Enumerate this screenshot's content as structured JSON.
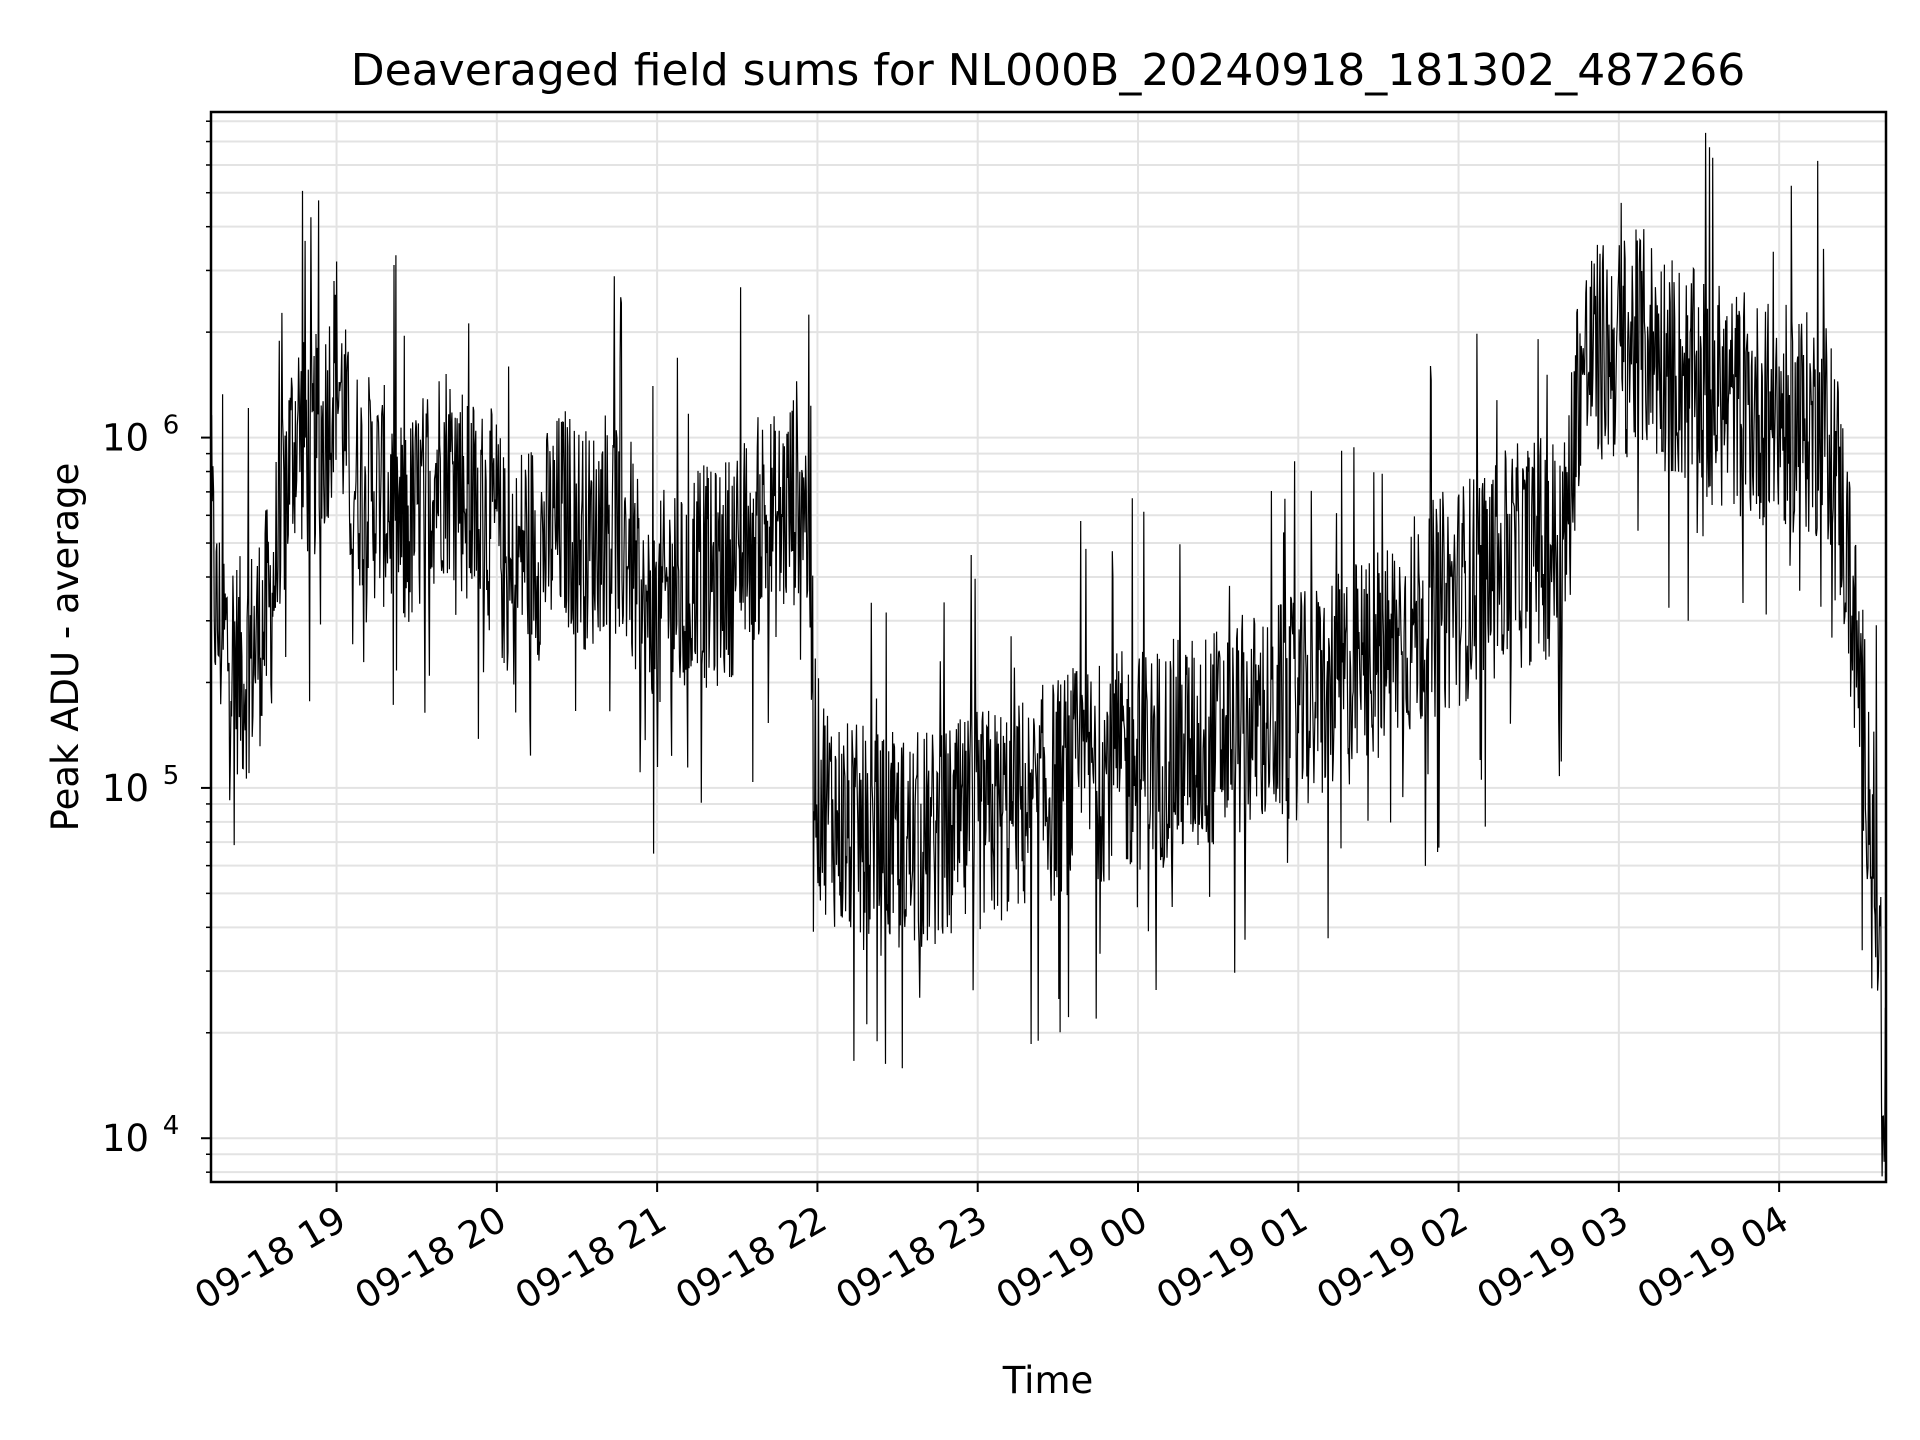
{
  "chart_data": {
    "type": "line",
    "title": "Deaveraged field sums for NL000B_20240918_181302_487266",
    "xlabel": "Time",
    "ylabel": "Peak ADU - average",
    "yscale": "log",
    "ylim": [
      7500,
      8500000
    ],
    "xlim": [
      "2024-09-18 18:13",
      "2024-09-19 04:40"
    ],
    "grid": true,
    "line_color": "#000000",
    "x_ticks": [
      {
        "value": "2024-09-18 19:00",
        "label": "09-18 19"
      },
      {
        "value": "2024-09-18 20:00",
        "label": "09-18 20"
      },
      {
        "value": "2024-09-18 21:00",
        "label": "09-18 21"
      },
      {
        "value": "2024-09-18 22:00",
        "label": "09-18 22"
      },
      {
        "value": "2024-09-18 23:00",
        "label": "09-18 23"
      },
      {
        "value": "2024-09-19 00:00",
        "label": "09-19 00"
      },
      {
        "value": "2024-09-19 01:00",
        "label": "09-19 01"
      },
      {
        "value": "2024-09-19 02:00",
        "label": "09-19 02"
      },
      {
        "value": "2024-09-19 03:00",
        "label": "09-19 03"
      },
      {
        "value": "2024-09-19 04:00",
        "label": "09-19 04"
      }
    ],
    "y_ticks": [
      {
        "value": 10000,
        "base": "10",
        "exp": "4"
      },
      {
        "value": 100000,
        "base": "10",
        "exp": "5"
      },
      {
        "value": 1000000,
        "base": "10",
        "exp": "6"
      }
    ],
    "series": [
      {
        "points": [
          [
            "2024-09-18 18:13",
            600000
          ],
          [
            "2024-09-18 18:15",
            300000
          ],
          [
            "2024-09-18 18:20",
            250000
          ],
          [
            "2024-09-18 18:25",
            210000
          ],
          [
            "2024-09-18 18:30",
            260000
          ],
          [
            "2024-09-18 18:35",
            320000
          ],
          [
            "2024-09-18 18:40",
            650000
          ],
          [
            "2024-09-18 18:45",
            1100000
          ],
          [
            "2024-09-18 18:50",
            900000
          ],
          [
            "2024-09-18 18:55",
            1000000
          ],
          [
            "2024-09-18 19:00",
            1700000
          ],
          [
            "2024-09-18 19:05",
            800000
          ],
          [
            "2024-09-18 19:10",
            750000
          ],
          [
            "2024-09-18 19:15",
            700000
          ],
          [
            "2024-09-18 19:20",
            650000
          ],
          [
            "2024-09-18 19:25",
            520000
          ],
          [
            "2024-09-18 19:30",
            600000
          ],
          [
            "2024-09-18 19:35",
            750000
          ],
          [
            "2024-09-18 19:40",
            850000
          ],
          [
            "2024-09-18 19:45",
            800000
          ],
          [
            "2024-09-18 19:50",
            650000
          ],
          [
            "2024-09-18 19:55",
            600000
          ],
          [
            "2024-09-18 20:00",
            560000
          ],
          [
            "2024-09-18 20:05",
            350000
          ],
          [
            "2024-09-18 20:10",
            500000
          ],
          [
            "2024-09-18 20:15",
            480000
          ],
          [
            "2024-09-18 20:20",
            520000
          ],
          [
            "2024-09-18 20:25",
            600000
          ],
          [
            "2024-09-18 20:30",
            550000
          ],
          [
            "2024-09-18 20:35",
            500000
          ],
          [
            "2024-09-18 20:40",
            600000
          ],
          [
            "2024-09-18 20:45",
            550000
          ],
          [
            "2024-09-18 20:50",
            480000
          ],
          [
            "2024-09-18 20:55",
            280000
          ],
          [
            "2024-09-18 21:00",
            300000
          ],
          [
            "2024-09-18 21:05",
            380000
          ],
          [
            "2024-09-18 21:10",
            320000
          ],
          [
            "2024-09-18 21:15",
            450000
          ],
          [
            "2024-09-18 21:20",
            380000
          ],
          [
            "2024-09-18 21:25",
            420000
          ],
          [
            "2024-09-18 21:30",
            450000
          ],
          [
            "2024-09-18 21:35",
            500000
          ],
          [
            "2024-09-18 21:40",
            600000
          ],
          [
            "2024-09-18 21:45",
            550000
          ],
          [
            "2024-09-18 21:50",
            650000
          ],
          [
            "2024-09-18 21:55",
            800000
          ],
          [
            "2024-09-18 22:00",
            100000
          ],
          [
            "2024-09-18 22:10",
            75000
          ],
          [
            "2024-09-18 22:20",
            70000
          ],
          [
            "2024-09-18 22:30",
            68000
          ],
          [
            "2024-09-18 22:40",
            70000
          ],
          [
            "2024-09-18 22:50",
            72000
          ],
          [
            "2024-09-18 23:00",
            80000
          ],
          [
            "2024-09-18 23:10",
            85000
          ],
          [
            "2024-09-18 23:20",
            90000
          ],
          [
            "2024-09-18 23:30",
            100000
          ],
          [
            "2024-09-18 23:40",
            110000
          ],
          [
            "2024-09-18 23:50",
            115000
          ],
          [
            "2024-09-19 00:00",
            120000
          ],
          [
            "2024-09-19 00:10",
            125000
          ],
          [
            "2024-09-19 00:20",
            130000
          ],
          [
            "2024-09-19 00:30",
            140000
          ],
          [
            "2024-09-19 00:40",
            150000
          ],
          [
            "2024-09-19 00:50",
            160000
          ],
          [
            "2024-09-19 01:00",
            170000
          ],
          [
            "2024-09-19 01:10",
            190000
          ],
          [
            "2024-09-19 01:20",
            210000
          ],
          [
            "2024-09-19 01:30",
            240000
          ],
          [
            "2024-09-19 01:40",
            280000
          ],
          [
            "2024-09-19 01:50",
            320000
          ],
          [
            "2024-09-19 02:00",
            360000
          ],
          [
            "2024-09-19 02:10",
            400000
          ],
          [
            "2024-09-19 02:20",
            450000
          ],
          [
            "2024-09-19 02:30",
            480000
          ],
          [
            "2024-09-19 02:40",
            500000
          ],
          [
            "2024-09-19 02:45",
            1500000
          ],
          [
            "2024-09-19 02:50",
            1700000
          ],
          [
            "2024-09-19 03:00",
            1800000
          ],
          [
            "2024-09-19 03:10",
            1900000
          ],
          [
            "2024-09-19 03:20",
            1600000
          ],
          [
            "2024-09-19 03:30",
            1400000
          ],
          [
            "2024-09-19 03:40",
            1300000
          ],
          [
            "2024-09-19 03:50",
            1200000
          ],
          [
            "2024-09-19 04:00",
            1150000
          ],
          [
            "2024-09-19 04:10",
            1100000
          ],
          [
            "2024-09-19 04:20",
            1000000
          ],
          [
            "2024-09-19 04:25",
            500000
          ],
          [
            "2024-09-19 04:30",
            200000
          ],
          [
            "2024-09-19 04:35",
            80000
          ],
          [
            "2024-09-19 04:38",
            30000
          ],
          [
            "2024-09-19 04:40",
            10000
          ]
        ],
        "spread_decades": 0.65
      }
    ]
  }
}
